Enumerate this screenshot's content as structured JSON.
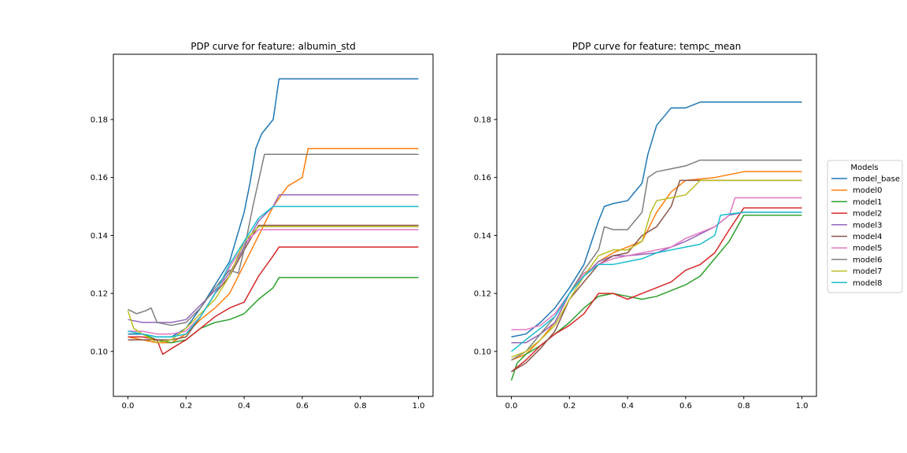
{
  "legend": {
    "title": "Models",
    "placement": "center-right (outside plot area)"
  },
  "colors": {
    "model_base": "#1f77b4",
    "model0": "#ff7f0e",
    "model1": "#2ca02c",
    "model2": "#d62728",
    "model3": "#9467bd",
    "model4": "#8c564b",
    "model5": "#e377c2",
    "model6": "#7f7f7f",
    "model7": "#bcbd22",
    "model8": "#17becf"
  },
  "chart_data": [
    {
      "type": "line",
      "title": "PDP curve for feature: albumin_std",
      "xlabel": "",
      "ylabel": "",
      "xlim": [
        -0.05,
        1.05
      ],
      "ylim": [
        0.0845,
        0.2025
      ],
      "xticks": [
        0.0,
        0.2,
        0.4,
        0.6,
        0.8,
        1.0
      ],
      "xtick_labels": [
        "0.0",
        "0.2",
        "0.4",
        "0.6",
        "0.8",
        "1.0"
      ],
      "yticks": [
        0.1,
        0.12,
        0.14,
        0.16,
        0.18
      ],
      "ytick_labels": [
        "0.10",
        "0.12",
        "0.14",
        "0.16",
        "0.18"
      ],
      "grid": false,
      "series": [
        {
          "name": "model_base",
          "x": [
            0,
            0.05,
            0.1,
            0.15,
            0.2,
            0.25,
            0.3,
            0.35,
            0.4,
            0.42,
            0.44,
            0.46,
            0.5,
            0.52,
            0.54,
            0.6,
            0.8,
            1.0
          ],
          "y": [
            0.106,
            0.106,
            0.105,
            0.105,
            0.108,
            0.115,
            0.123,
            0.131,
            0.148,
            0.158,
            0.17,
            0.175,
            0.18,
            0.194,
            0.194,
            0.194,
            0.194,
            0.194
          ]
        },
        {
          "name": "model0",
          "x": [
            0,
            0.05,
            0.1,
            0.15,
            0.2,
            0.25,
            0.3,
            0.35,
            0.4,
            0.45,
            0.5,
            0.55,
            0.6,
            0.62,
            0.7,
            1.0
          ],
          "y": [
            0.105,
            0.104,
            0.103,
            0.103,
            0.106,
            0.111,
            0.115,
            0.12,
            0.13,
            0.14,
            0.15,
            0.157,
            0.16,
            0.17,
            0.17,
            0.17
          ]
        },
        {
          "name": "model1",
          "x": [
            0,
            0.05,
            0.1,
            0.15,
            0.2,
            0.25,
            0.3,
            0.35,
            0.4,
            0.45,
            0.5,
            0.52,
            0.6,
            1.0
          ],
          "y": [
            0.107,
            0.106,
            0.104,
            0.103,
            0.104,
            0.108,
            0.11,
            0.111,
            0.113,
            0.118,
            0.122,
            0.1255,
            0.1255,
            0.1255
          ]
        },
        {
          "name": "model2",
          "x": [
            0,
            0.05,
            0.1,
            0.12,
            0.15,
            0.2,
            0.25,
            0.3,
            0.35,
            0.4,
            0.45,
            0.5,
            0.52,
            0.6,
            1.0
          ],
          "y": [
            0.105,
            0.105,
            0.104,
            0.099,
            0.101,
            0.104,
            0.108,
            0.112,
            0.115,
            0.117,
            0.126,
            0.133,
            0.136,
            0.136,
            0.136
          ]
        },
        {
          "name": "model3",
          "x": [
            0,
            0.05,
            0.1,
            0.15,
            0.2,
            0.25,
            0.3,
            0.35,
            0.4,
            0.45,
            0.5,
            0.52,
            0.6,
            1.0
          ],
          "y": [
            0.111,
            0.11,
            0.11,
            0.11,
            0.111,
            0.116,
            0.121,
            0.127,
            0.136,
            0.145,
            0.15,
            0.154,
            0.154,
            0.154
          ]
        },
        {
          "name": "model4",
          "x": [
            0,
            0.05,
            0.1,
            0.15,
            0.2,
            0.25,
            0.3,
            0.35,
            0.4,
            0.45,
            0.5,
            1.0
          ],
          "y": [
            0.104,
            0.104,
            0.104,
            0.104,
            0.105,
            0.112,
            0.12,
            0.126,
            0.135,
            0.1435,
            0.1435,
            0.1435
          ]
        },
        {
          "name": "model5",
          "x": [
            0,
            0.05,
            0.1,
            0.15,
            0.2,
            0.25,
            0.3,
            0.35,
            0.4,
            0.45,
            0.5,
            1.0
          ],
          "y": [
            0.107,
            0.107,
            0.106,
            0.106,
            0.107,
            0.112,
            0.12,
            0.129,
            0.137,
            0.142,
            0.142,
            0.142
          ]
        },
        {
          "name": "model6",
          "x": [
            0,
            0.03,
            0.06,
            0.08,
            0.1,
            0.15,
            0.2,
            0.25,
            0.3,
            0.35,
            0.38,
            0.4,
            0.43,
            0.47,
            0.5,
            1.0
          ],
          "y": [
            0.1145,
            0.113,
            0.114,
            0.115,
            0.11,
            0.109,
            0.11,
            0.115,
            0.122,
            0.128,
            0.127,
            0.135,
            0.15,
            0.168,
            0.168,
            0.168
          ]
        },
        {
          "name": "model7",
          "x": [
            0,
            0.02,
            0.05,
            0.1,
            0.15,
            0.2,
            0.25,
            0.3,
            0.35,
            0.4,
            0.45,
            0.5,
            1.0
          ],
          "y": [
            0.114,
            0.108,
            0.106,
            0.103,
            0.104,
            0.108,
            0.113,
            0.118,
            0.126,
            0.138,
            0.143,
            0.143,
            0.143
          ]
        },
        {
          "name": "model8",
          "x": [
            0,
            0.05,
            0.1,
            0.15,
            0.2,
            0.25,
            0.3,
            0.35,
            0.4,
            0.45,
            0.5,
            1.0
          ],
          "y": [
            0.107,
            0.106,
            0.105,
            0.105,
            0.106,
            0.112,
            0.12,
            0.13,
            0.138,
            0.146,
            0.15,
            0.15
          ]
        }
      ]
    },
    {
      "type": "line",
      "title": "PDP curve for feature: tempc_mean",
      "xlabel": "",
      "ylabel": "",
      "xlim": [
        -0.05,
        1.05
      ],
      "ylim": [
        0.0845,
        0.2025
      ],
      "xticks": [
        0.0,
        0.2,
        0.4,
        0.6,
        0.8,
        1.0
      ],
      "xtick_labels": [
        "0.0",
        "0.2",
        "0.4",
        "0.6",
        "0.8",
        "1.0"
      ],
      "yticks": [
        0.1,
        0.12,
        0.14,
        0.16,
        0.18
      ],
      "ytick_labels": [
        "0.10",
        "0.12",
        "0.14",
        "0.16",
        "0.18"
      ],
      "grid": false,
      "series": [
        {
          "name": "model_base",
          "x": [
            0,
            0.05,
            0.1,
            0.15,
            0.2,
            0.25,
            0.3,
            0.32,
            0.35,
            0.4,
            0.45,
            0.47,
            0.5,
            0.55,
            0.6,
            0.65,
            0.7,
            1.0
          ],
          "y": [
            0.105,
            0.106,
            0.11,
            0.115,
            0.122,
            0.13,
            0.145,
            0.15,
            0.151,
            0.152,
            0.158,
            0.168,
            0.178,
            0.184,
            0.184,
            0.186,
            0.186,
            0.186
          ]
        },
        {
          "name": "model0",
          "x": [
            0,
            0.05,
            0.1,
            0.15,
            0.2,
            0.25,
            0.3,
            0.35,
            0.4,
            0.45,
            0.5,
            0.55,
            0.6,
            0.7,
            0.8,
            1.0
          ],
          "y": [
            0.097,
            0.099,
            0.104,
            0.11,
            0.12,
            0.126,
            0.131,
            0.134,
            0.136,
            0.138,
            0.148,
            0.155,
            0.159,
            0.16,
            0.162,
            0.162
          ]
        },
        {
          "name": "model1",
          "x": [
            0,
            0.02,
            0.05,
            0.1,
            0.15,
            0.2,
            0.25,
            0.3,
            0.35,
            0.4,
            0.45,
            0.5,
            0.55,
            0.6,
            0.65,
            0.7,
            0.75,
            0.8,
            1.0
          ],
          "y": [
            0.09,
            0.096,
            0.099,
            0.102,
            0.106,
            0.11,
            0.115,
            0.119,
            0.12,
            0.119,
            0.118,
            0.119,
            0.121,
            0.123,
            0.126,
            0.132,
            0.138,
            0.147,
            0.147
          ]
        },
        {
          "name": "model2",
          "x": [
            0,
            0.05,
            0.1,
            0.15,
            0.2,
            0.25,
            0.3,
            0.35,
            0.4,
            0.45,
            0.5,
            0.55,
            0.6,
            0.65,
            0.7,
            0.75,
            0.8,
            1.0
          ],
          "y": [
            0.093,
            0.097,
            0.102,
            0.106,
            0.109,
            0.113,
            0.12,
            0.12,
            0.118,
            0.12,
            0.122,
            0.124,
            0.128,
            0.13,
            0.134,
            0.142,
            0.1495,
            0.1495
          ]
        },
        {
          "name": "model3",
          "x": [
            0,
            0.05,
            0.1,
            0.15,
            0.2,
            0.25,
            0.3,
            0.35,
            0.4,
            0.5,
            0.6,
            0.7,
            0.75,
            0.8,
            1.0
          ],
          "y": [
            0.103,
            0.103,
            0.106,
            0.11,
            0.12,
            0.126,
            0.131,
            0.133,
            0.133,
            0.134,
            0.138,
            0.143,
            0.147,
            0.148,
            0.148
          ]
        },
        {
          "name": "model4",
          "x": [
            0,
            0.05,
            0.1,
            0.15,
            0.2,
            0.25,
            0.3,
            0.35,
            0.4,
            0.45,
            0.5,
            0.55,
            0.58,
            0.6,
            0.7,
            1.0
          ],
          "y": [
            0.093,
            0.096,
            0.101,
            0.107,
            0.118,
            0.124,
            0.13,
            0.133,
            0.134,
            0.14,
            0.143,
            0.15,
            0.159,
            0.159,
            0.159,
            0.159
          ]
        },
        {
          "name": "model5",
          "x": [
            0,
            0.05,
            0.1,
            0.15,
            0.2,
            0.25,
            0.3,
            0.35,
            0.4,
            0.45,
            0.5,
            0.55,
            0.6,
            0.65,
            0.7,
            0.75,
            0.77,
            0.8,
            1.0
          ],
          "y": [
            0.1075,
            0.1075,
            0.109,
            0.113,
            0.12,
            0.127,
            0.13,
            0.132,
            0.133,
            0.134,
            0.135,
            0.136,
            0.139,
            0.141,
            0.143,
            0.147,
            0.153,
            0.153,
            0.153
          ]
        },
        {
          "name": "model6",
          "x": [
            0,
            0.05,
            0.1,
            0.15,
            0.2,
            0.25,
            0.3,
            0.32,
            0.35,
            0.4,
            0.45,
            0.47,
            0.5,
            0.55,
            0.6,
            0.65,
            0.7,
            1.0
          ],
          "y": [
            0.097,
            0.1,
            0.106,
            0.112,
            0.12,
            0.128,
            0.135,
            0.143,
            0.142,
            0.142,
            0.148,
            0.16,
            0.162,
            0.163,
            0.164,
            0.166,
            0.166,
            0.166
          ]
        },
        {
          "name": "model7",
          "x": [
            0,
            0.05,
            0.1,
            0.15,
            0.2,
            0.25,
            0.3,
            0.35,
            0.4,
            0.45,
            0.48,
            0.5,
            0.55,
            0.6,
            0.65,
            0.7,
            1.0
          ],
          "y": [
            0.098,
            0.1,
            0.104,
            0.109,
            0.118,
            0.126,
            0.133,
            0.135,
            0.135,
            0.138,
            0.148,
            0.152,
            0.153,
            0.154,
            0.159,
            0.159,
            0.159
          ]
        },
        {
          "name": "model8",
          "x": [
            0,
            0.05,
            0.1,
            0.15,
            0.2,
            0.25,
            0.3,
            0.35,
            0.4,
            0.45,
            0.5,
            0.55,
            0.6,
            0.65,
            0.7,
            0.72,
            0.8,
            1.0
          ],
          "y": [
            0.1,
            0.104,
            0.108,
            0.112,
            0.12,
            0.126,
            0.13,
            0.13,
            0.131,
            0.132,
            0.134,
            0.135,
            0.136,
            0.137,
            0.14,
            0.147,
            0.148,
            0.148
          ]
        }
      ]
    }
  ]
}
